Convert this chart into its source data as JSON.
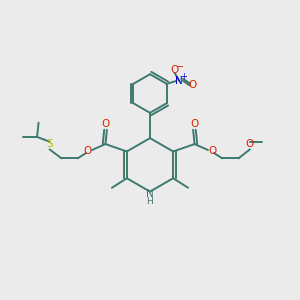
{
  "bg_color": "#ebebeb",
  "bond_color": "#3d7a6e",
  "o_color": "#dd2200",
  "n_color": "#0000cc",
  "s_color": "#bbbb00",
  "line_width": 1.4,
  "figsize": [
    3.0,
    3.0
  ],
  "dpi": 100,
  "xlim": [
    0,
    10
  ],
  "ylim": [
    0,
    10
  ]
}
